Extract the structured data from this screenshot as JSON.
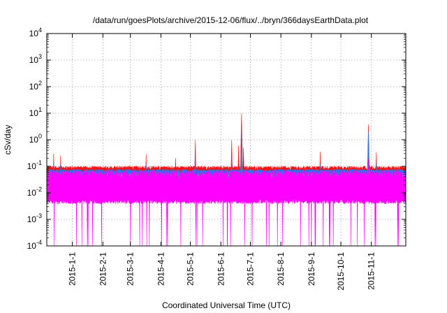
{
  "chart_data": {
    "type": "line",
    "title": "/data/run/goesPlots/archive/2015-12-06/flux/../bryn/366daysEarthData.plot",
    "xlabel": "Coordinated Universal Time (UTC)",
    "ylabel": "cSv/day",
    "yscale": "log",
    "ylim": [
      0.0001,
      10000
    ],
    "xlim": [
      "2014-12-06",
      "2015-12-06"
    ],
    "x_ticks": [
      "2015-1-1",
      "2015-2-1",
      "2015-3-1",
      "2015-4-1",
      "2015-5-1",
      "2015-6-1",
      "2015-7-1",
      "2015-8-1",
      "2015-9-1",
      "2015-10-1",
      "2015-11-1"
    ],
    "y_ticks": [
      {
        "base": "10",
        "exp": "-4"
      },
      {
        "base": "10",
        "exp": "-3"
      },
      {
        "base": "10",
        "exp": "-2"
      },
      {
        "base": "10",
        "exp": "-1"
      },
      {
        "base": "10",
        "exp": "0"
      },
      {
        "base": "10",
        "exp": "1"
      },
      {
        "base": "10",
        "exp": "2"
      },
      {
        "base": "10",
        "exp": "3"
      },
      {
        "base": "10",
        "exp": "4"
      }
    ],
    "grid": true,
    "legend": "none",
    "series": [
      {
        "color": "#ff1010",
        "baseline": 0.085,
        "spikes": [
          [
            "2014-12-13",
            0.3
          ],
          [
            "2014-12-20",
            0.25
          ],
          [
            "2015-03-17",
            0.28
          ],
          [
            "2015-04-16",
            0.2
          ],
          [
            "2015-05-06",
            0.95
          ],
          [
            "2015-06-12",
            0.95
          ],
          [
            "2015-06-19",
            0.6
          ],
          [
            "2015-06-22",
            9.5
          ],
          [
            "2015-06-24",
            0.5
          ],
          [
            "2015-09-10",
            0.35
          ],
          [
            "2015-10-29",
            3.7
          ],
          [
            "2015-11-06",
            0.33
          ]
        ]
      },
      {
        "color": "#1c7cf2",
        "baseline": 0.065,
        "spikes": [
          [
            "2014-12-13",
            0.15
          ],
          [
            "2014-12-20",
            0.12
          ],
          [
            "2015-03-17",
            0.12
          ],
          [
            "2015-05-06",
            0.3
          ],
          [
            "2015-06-12",
            0.25
          ],
          [
            "2015-06-22",
            2.7
          ],
          [
            "2015-09-10",
            0.12
          ],
          [
            "2015-10-29",
            2.0
          ],
          [
            "2015-11-06",
            0.15
          ]
        ]
      },
      {
        "color": "#20b2a0",
        "baseline": 0.045,
        "spikes": [
          [
            "2015-06-22",
            0.3
          ],
          [
            "2015-10-29",
            0.25
          ]
        ]
      },
      {
        "color": "#00c000",
        "baseline": 0.035,
        "spikes": [
          [
            "2015-06-22",
            0.15
          ],
          [
            "2015-10-29",
            0.12
          ]
        ]
      },
      {
        "color": "#ff00ff",
        "baseline": 0.02,
        "floor": 0.0045,
        "dropout_floor": 0.0001,
        "spikes": [
          [
            "2015-06-22",
            0.1
          ],
          [
            "2015-10-29",
            0.2
          ]
        ]
      }
    ]
  }
}
